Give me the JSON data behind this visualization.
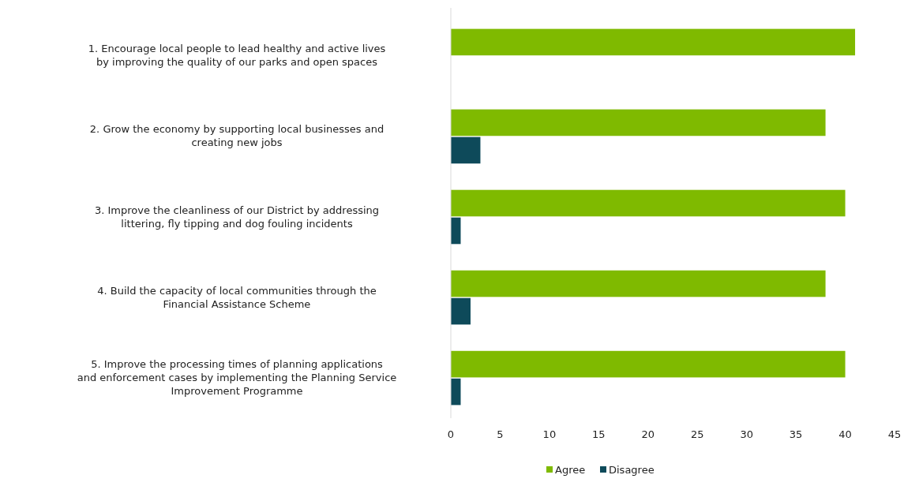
{
  "chart_data": {
    "type": "bar",
    "orientation": "horizontal",
    "categories": [
      "1. Encourage local people to lead healthy and active lives by improving the quality of our parks and open spaces",
      "2. Grow the economy by supporting local businesses and creating new jobs",
      "3. Improve the cleanliness of our District by addressing littering, fly tipping and dog fouling incidents",
      "4. Build the capacity of local communities through the Financial Assistance Scheme",
      "5. Improve the processing times of planning applications and enforcement cases by implementing the Planning Service Improvement Programme"
    ],
    "series": [
      {
        "name": "Agree",
        "color": "#7fba00",
        "values": [
          41,
          38,
          40,
          38,
          40
        ]
      },
      {
        "name": "Disagree",
        "color": "#0e4a5a",
        "values": [
          0,
          3,
          1,
          2,
          1
        ]
      }
    ],
    "xlim": [
      0,
      45
    ],
    "xticks": [
      0,
      5,
      10,
      15,
      20,
      25,
      30,
      35,
      40,
      45
    ],
    "grid": false,
    "legend": "bottom"
  }
}
